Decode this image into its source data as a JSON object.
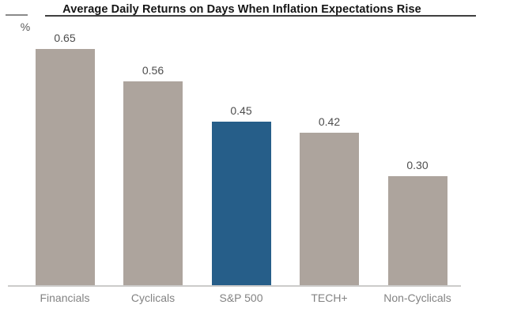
{
  "chart": {
    "title": "Average Daily Returns on Days When Inflation Expectations Rise",
    "unit_label": "%"
  },
  "chart_data": {
    "type": "bar",
    "title": "Average Daily Returns on Days When Inflation Expectations Rise",
    "xlabel": "",
    "ylabel": "%",
    "categories": [
      "Financials",
      "Cyclicals",
      "S&P 500",
      "TECH+",
      "Non-Cyclicals"
    ],
    "values": [
      0.65,
      0.56,
      0.45,
      0.42,
      0.3
    ],
    "value_labels": [
      "0.65",
      "0.56",
      "0.45",
      "0.42",
      "0.30"
    ],
    "highlight_category": "S&P 500",
    "ylim": [
      0,
      0.78
    ],
    "grid": false,
    "legend": false,
    "colors": {
      "bar_default": "#ada49d",
      "bar_highlight": "#265e89",
      "value_label": "#4d4d4d",
      "category_label": "#838383",
      "axis_line": "#cccbca",
      "title": "#151515"
    }
  }
}
